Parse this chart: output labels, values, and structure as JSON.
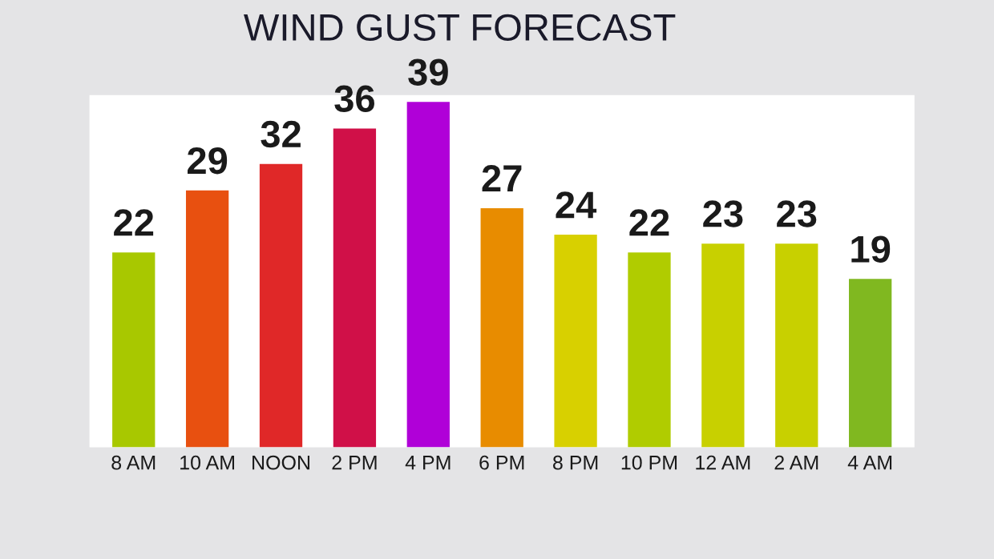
{
  "chart_data": {
    "type": "bar",
    "title": "WIND GUST FORECAST",
    "categories": [
      "8 AM",
      "10 AM",
      "NOON",
      "2 PM",
      "4 PM",
      "6 PM",
      "8 PM",
      "10 PM",
      "12 AM",
      "2 AM",
      "4 AM"
    ],
    "values": [
      22,
      29,
      32,
      36,
      39,
      27,
      24,
      22,
      23,
      23,
      19
    ],
    "colors": [
      "#a8c800",
      "#e85010",
      "#e02828",
      "#d01048",
      "#b000d8",
      "#e88c00",
      "#d8d000",
      "#b0cc00",
      "#c8d000",
      "#c8d000",
      "#80b820"
    ],
    "data_labels": true,
    "grid": false,
    "legend": false
  }
}
